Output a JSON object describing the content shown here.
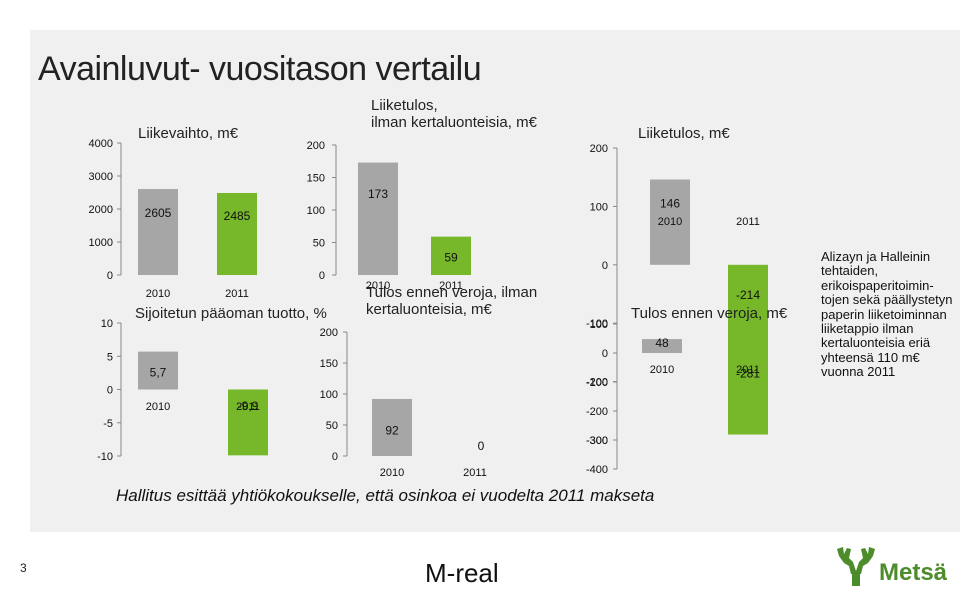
{
  "page": {
    "title": "Avainluvut- vuositason vertailu",
    "footnote": "Hallitus esittää yhtiökokoukselle, että osinkoa ei vuodelta 2011 makseta",
    "note": "Alizayn ja Halleinin tehtaiden, erikoispaperitoimin-tojen sekä päällystetyn paperin liiketoiminnan liiketappio ilman kertaluonteisia eriä yhteensä 110 m€ vuonna 2011",
    "page_number": "3",
    "brand": "M-real",
    "logo_text": "Metsä",
    "colors": {
      "bar_2010": "#a6a6a6",
      "bar_2011": "#76b82a",
      "logo": "#4c8c2b"
    }
  },
  "chart_data": [
    {
      "id": "liikevaihto",
      "type": "bar",
      "title": "Liikevaihto, m€",
      "categories": [
        "2010",
        "2011"
      ],
      "values": [
        2605,
        2485
      ],
      "value_labels": [
        "2605",
        "2485"
      ],
      "ylim": [
        0,
        4000
      ],
      "ticks": [
        "0",
        "1000",
        "2000",
        "3000",
        "4000"
      ]
    },
    {
      "id": "liiketulos_ilman",
      "type": "bar",
      "title": "Liiketulos, ilman kertaluonteisia, m€",
      "categories": [
        "2010",
        "2011"
      ],
      "values": [
        173,
        59
      ],
      "value_labels": [
        "173",
        "59"
      ],
      "ylim": [
        0,
        200
      ],
      "ticks": [
        "0",
        "50",
        "100",
        "150",
        "200"
      ]
    },
    {
      "id": "liiketulos",
      "type": "bar",
      "title": "Liiketulos, m€",
      "categories": [
        "2010",
        "2011"
      ],
      "values": [
        146,
        -214
      ],
      "value_labels": [
        "146",
        "-214"
      ],
      "ylim": [
        -300,
        200
      ],
      "ticks": [
        "-300",
        "-200",
        "-100",
        "0",
        "100",
        "200"
      ]
    },
    {
      "id": "sijoitetun_paaoman_tuotto",
      "type": "bar",
      "title": "Sijoitetun pääoman tuotto, %",
      "categories": [
        "2010",
        "2011"
      ],
      "values": [
        5.7,
        -9.9
      ],
      "value_labels": [
        "5,7",
        "-9,9"
      ],
      "ylim": [
        -10,
        10
      ],
      "ticks": [
        "-10",
        "-5",
        "0",
        "5",
        "10"
      ]
    },
    {
      "id": "tulos_ennen_veroja_ilman",
      "type": "bar",
      "title": "Tulos ennen veroja, ilman kertaluonteisia, m€",
      "categories": [
        "2010",
        "2011"
      ],
      "values": [
        92,
        0
      ],
      "value_labels": [
        "92",
        "0"
      ],
      "ylim": [
        0,
        200
      ],
      "ticks": [
        "0",
        "50",
        "100",
        "150",
        "200"
      ]
    },
    {
      "id": "tulos_ennen_veroja",
      "type": "bar",
      "title": "Tulos ennen veroja, m€",
      "categories": [
        "2010",
        "2011"
      ],
      "values": [
        48,
        -281
      ],
      "value_labels": [
        "48",
        "-281"
      ],
      "ylim": [
        -400,
        100
      ],
      "ticks": [
        "-400",
        "-300",
        "-200",
        "-100",
        "0",
        "100"
      ]
    }
  ]
}
